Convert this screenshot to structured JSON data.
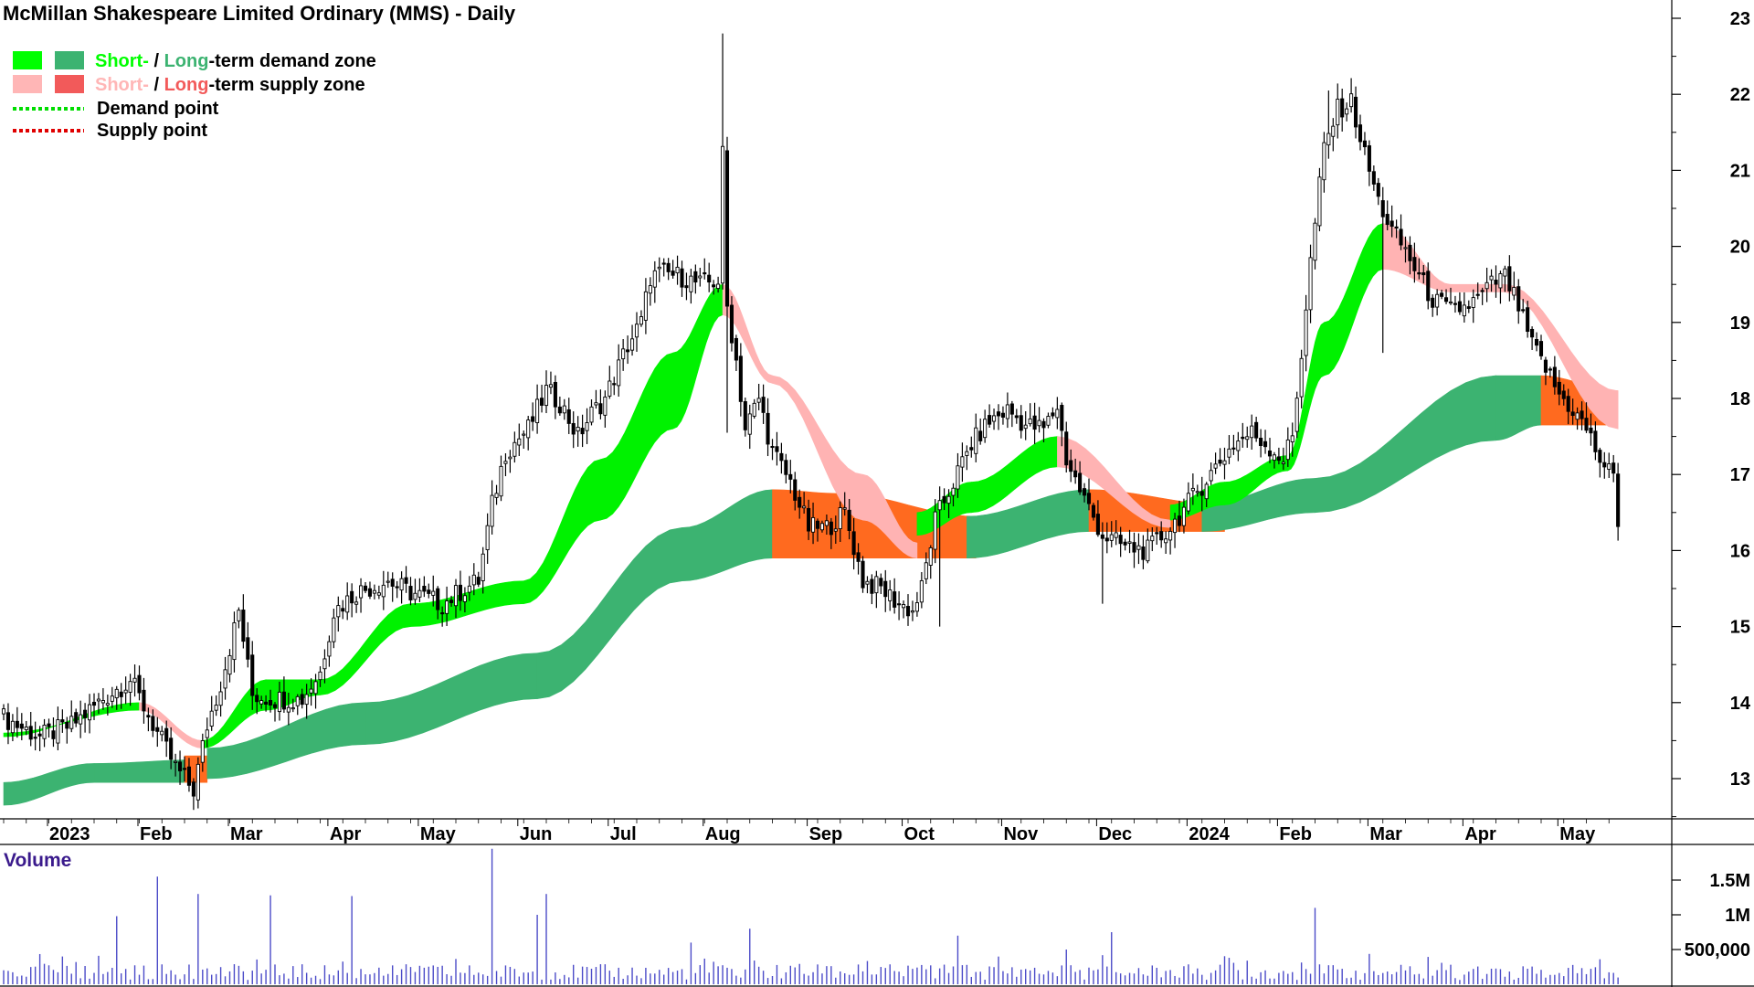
{
  "chart_data": {
    "type": "candlestick",
    "title": "McMillan Shakespeare Limited Ordinary (MMS) - Daily",
    "legend": {
      "placement": "top-left",
      "items": [
        {
          "prefix": "Short-",
          "sep": " / ",
          "mid": "Long",
          "suffix": "-term demand zone",
          "colors": [
            "#00ff00",
            "#3cb371"
          ],
          "prefix_color": "#00ff00",
          "mid_color": "#3cb371"
        },
        {
          "prefix": "Short-",
          "sep": " / ",
          "mid": "Long",
          "suffix": "-term supply zone",
          "colors": [
            "#ffb6b6",
            "#f25a5a"
          ],
          "prefix_color": "#ffb6b6",
          "mid_color": "#f25a5a"
        },
        {
          "label": "Demand point",
          "color": "#00dd00",
          "dashed": true
        },
        {
          "label": "Supply point",
          "color": "#e00000",
          "dashed": true
        }
      ]
    },
    "y_axis": {
      "ticks": [
        "13",
        "14",
        "15",
        "16",
        "17",
        "18",
        "19",
        "20",
        "21",
        "22",
        "23"
      ],
      "ylim": [
        12.5,
        23.2
      ],
      "side": "right"
    },
    "x_axis": {
      "ticks": [
        "2023",
        "Feb",
        "Mar",
        "Apr",
        "May",
        "Jun",
        "Jul",
        "Aug",
        "Sep",
        "Oct",
        "Nov",
        "Dec",
        "2024",
        "Feb",
        "Mar",
        "Apr",
        "May"
      ],
      "tick_index": [
        0,
        20,
        40,
        62,
        82,
        104,
        124,
        145,
        168,
        189,
        211,
        232,
        252,
        272,
        292,
        313,
        334
      ]
    },
    "price_path": [
      [
        0,
        13.8
      ],
      [
        8,
        13.55
      ],
      [
        15,
        13.7
      ],
      [
        22,
        14.05
      ],
      [
        28,
        14.3
      ],
      [
        31,
        13.95
      ],
      [
        34,
        13.6
      ],
      [
        38,
        13.15
      ],
      [
        42,
        12.85
      ],
      [
        45,
        13.7
      ],
      [
        48,
        14.25
      ],
      [
        52,
        15.2
      ],
      [
        55,
        14.1
      ],
      [
        60,
        14.05
      ],
      [
        66,
        14.05
      ],
      [
        70,
        14.4
      ],
      [
        73,
        15.2
      ],
      [
        78,
        15.45
      ],
      [
        85,
        15.6
      ],
      [
        90,
        15.45
      ],
      [
        97,
        15.3
      ],
      [
        102,
        15.5
      ],
      [
        105,
        15.6
      ],
      [
        108,
        16.6
      ],
      [
        111,
        17.3
      ],
      [
        116,
        17.6
      ],
      [
        120,
        18.1
      ],
      [
        123,
        17.95
      ],
      [
        127,
        17.5
      ],
      [
        130,
        17.8
      ],
      [
        133,
        18.0
      ],
      [
        138,
        18.7
      ],
      [
        141,
        19.0
      ],
      [
        143,
        19.6
      ],
      [
        146,
        19.65
      ],
      [
        150,
        19.6
      ],
      [
        154,
        19.5
      ],
      [
        158,
        19.55
      ],
      [
        159,
        21.2
      ],
      [
        160,
        19.2
      ],
      [
        162,
        18.5
      ],
      [
        164,
        17.6
      ],
      [
        167,
        18.0
      ],
      [
        170,
        17.3
      ],
      [
        174,
        16.9
      ],
      [
        178,
        16.3
      ],
      [
        182,
        16.3
      ],
      [
        186,
        16.5
      ],
      [
        190,
        15.6
      ],
      [
        194,
        15.5
      ],
      [
        198,
        15.3
      ],
      [
        201,
        15.2
      ],
      [
        203,
        15.5
      ],
      [
        206,
        16.4
      ],
      [
        210,
        16.9
      ],
      [
        214,
        17.4
      ],
      [
        218,
        17.7
      ],
      [
        222,
        17.85
      ],
      [
        226,
        17.65
      ],
      [
        230,
        17.6
      ],
      [
        233,
        17.9
      ],
      [
        235,
        17.2
      ],
      [
        238,
        16.8
      ],
      [
        243,
        16.2
      ],
      [
        248,
        16.05
      ],
      [
        253,
        16.0
      ],
      [
        258,
        16.3
      ],
      [
        263,
        16.7
      ],
      [
        268,
        17.1
      ],
      [
        272,
        17.4
      ],
      [
        276,
        17.55
      ],
      [
        280,
        17.35
      ],
      [
        283,
        17.2
      ],
      [
        285,
        17.5
      ],
      [
        287,
        18.6
      ],
      [
        289,
        19.8
      ],
      [
        292,
        21.3
      ],
      [
        295,
        21.8
      ],
      [
        298,
        21.9
      ],
      [
        301,
        21.2
      ],
      [
        304,
        20.6
      ],
      [
        307,
        20.2
      ],
      [
        310,
        19.95
      ],
      [
        313,
        19.6
      ],
      [
        316,
        19.3
      ],
      [
        320,
        19.15
      ],
      [
        323,
        19.2
      ],
      [
        326,
        19.3
      ],
      [
        329,
        19.5
      ],
      [
        332,
        19.6
      ],
      [
        335,
        19.2
      ],
      [
        338,
        18.7
      ],
      [
        341,
        18.4
      ],
      [
        344,
        18.05
      ],
      [
        347,
        17.85
      ],
      [
        350,
        17.6
      ],
      [
        353,
        17.2
      ],
      [
        356,
        16.95
      ],
      [
        357,
        16.4
      ]
    ],
    "spikes": [
      [
        159,
        22.8
      ],
      [
        160,
        17.55
      ],
      [
        243,
        15.3
      ],
      [
        293,
        22.05
      ],
      [
        305,
        18.6
      ],
      [
        207,
        15.0
      ],
      [
        42,
        12.8
      ]
    ],
    "short_zone": [
      {
        "x": [
          0,
          30
        ],
        "top": [
          13.55,
          14.0
        ],
        "bot": [
          13.6,
          13.9
        ],
        "kind": "demand"
      },
      {
        "x": [
          30,
          44
        ],
        "top": [
          14.0,
          13.5
        ],
        "bot": [
          13.9,
          13.4
        ],
        "kind": "supply"
      },
      {
        "x": [
          44,
          58
        ],
        "top": [
          13.5,
          14.3
        ],
        "bot": [
          13.4,
          13.9
        ],
        "kind": "demand"
      },
      {
        "x": [
          58,
          70
        ],
        "top": [
          14.3,
          14.3
        ],
        "bot": [
          13.9,
          14.1
        ],
        "kind": "demand"
      },
      {
        "x": [
          70,
          90
        ],
        "top": [
          14.3,
          15.3
        ],
        "bot": [
          14.1,
          15.0
        ],
        "kind": "demand"
      },
      {
        "x": [
          90,
          115
        ],
        "top": [
          15.3,
          15.6
        ],
        "bot": [
          15.0,
          15.3
        ],
        "kind": "demand"
      },
      {
        "x": [
          115,
          132
        ],
        "top": [
          15.6,
          17.2
        ],
        "bot": [
          15.3,
          16.4
        ],
        "kind": "demand"
      },
      {
        "x": [
          132,
          148
        ],
        "top": [
          17.2,
          18.6
        ],
        "bot": [
          16.4,
          17.6
        ],
        "kind": "demand"
      },
      {
        "x": [
          148,
          159
        ],
        "top": [
          18.6,
          19.5
        ],
        "bot": [
          17.6,
          19.1
        ],
        "kind": "demand"
      },
      {
        "x": [
          159,
          170
        ],
        "top": [
          19.5,
          18.3
        ],
        "bot": [
          19.1,
          18.2
        ],
        "kind": "supply"
      },
      {
        "x": [
          170,
          190
        ],
        "top": [
          18.3,
          17.0
        ],
        "bot": [
          18.2,
          16.4
        ],
        "kind": "supply"
      },
      {
        "x": [
          190,
          202
        ],
        "top": [
          17.0,
          16.1
        ],
        "bot": [
          16.4,
          15.9
        ],
        "kind": "supply"
      },
      {
        "x": [
          202,
          214
        ],
        "top": [
          16.5,
          16.9
        ],
        "bot": [
          16.2,
          16.5
        ],
        "kind": "demand"
      },
      {
        "x": [
          214,
          233
        ],
        "top": [
          16.9,
          17.5
        ],
        "bot": [
          16.5,
          17.1
        ],
        "kind": "demand"
      },
      {
        "x": [
          233,
          258
        ],
        "top": [
          17.5,
          16.4
        ],
        "bot": [
          17.1,
          16.3
        ],
        "kind": "supply"
      },
      {
        "x": [
          258,
          270
        ],
        "top": [
          16.6,
          16.9
        ],
        "bot": [
          16.4,
          16.6
        ],
        "kind": "demand"
      },
      {
        "x": [
          270,
          284
        ],
        "top": [
          16.9,
          17.25
        ],
        "bot": [
          16.6,
          17.05
        ],
        "kind": "demand"
      },
      {
        "x": [
          284,
          292
        ],
        "top": [
          17.25,
          19.0
        ],
        "bot": [
          17.05,
          18.3
        ],
        "kind": "demand"
      },
      {
        "x": [
          292,
          305
        ],
        "top": [
          19.0,
          20.3
        ],
        "bot": [
          18.3,
          19.7
        ],
        "kind": "demand"
      },
      {
        "x": [
          305,
          320
        ],
        "top": [
          20.3,
          19.5
        ],
        "bot": [
          19.7,
          19.4
        ],
        "kind": "supply"
      },
      {
        "x": [
          320,
          332
        ],
        "top": [
          19.5,
          19.5
        ],
        "bot": [
          19.4,
          19.4
        ],
        "kind": "supply"
      },
      {
        "x": [
          332,
          357
        ],
        "top": [
          19.5,
          18.1
        ],
        "bot": [
          19.4,
          17.6
        ],
        "kind": "supply"
      }
    ],
    "long_zone": [
      {
        "x": [
          0,
          20
        ],
        "top": [
          12.95,
          13.2
        ],
        "bot": [
          12.65,
          12.95
        ],
        "kind": "demand"
      },
      {
        "x": [
          20,
          44
        ],
        "top": [
          13.2,
          13.25
        ],
        "bot": [
          12.95,
          12.95
        ],
        "kind": "demand"
      },
      {
        "x": [
          40,
          45
        ],
        "top": [
          13.3,
          13.3
        ],
        "bot": [
          12.95,
          12.95
        ],
        "kind": "supply"
      },
      {
        "x": [
          45,
          80
        ],
        "top": [
          13.4,
          14.0
        ],
        "bot": [
          13.0,
          13.45
        ],
        "kind": "demand"
      },
      {
        "x": [
          80,
          118
        ],
        "top": [
          14.0,
          14.65
        ],
        "bot": [
          13.45,
          14.05
        ],
        "kind": "demand"
      },
      {
        "x": [
          118,
          150
        ],
        "top": [
          14.65,
          16.3
        ],
        "bot": [
          14.05,
          15.6
        ],
        "kind": "demand"
      },
      {
        "x": [
          150,
          170
        ],
        "top": [
          16.3,
          16.8
        ],
        "bot": [
          15.6,
          15.9
        ],
        "kind": "demand"
      },
      {
        "x": [
          170,
          185
        ],
        "top": [
          16.8,
          16.75
        ],
        "bot": [
          15.9,
          15.9
        ],
        "kind": "supply"
      },
      {
        "x": [
          185,
          215
        ],
        "top": [
          16.75,
          16.45
        ],
        "bot": [
          15.9,
          15.9
        ],
        "kind": "supply"
      },
      {
        "x": [
          213,
          240
        ],
        "top": [
          16.45,
          16.8
        ],
        "bot": [
          15.9,
          16.25
        ],
        "kind": "demand"
      },
      {
        "x": [
          240,
          270
        ],
        "top": [
          16.8,
          16.6
        ],
        "bot": [
          16.25,
          16.25
        ],
        "kind": "supply"
      },
      {
        "x": [
          265,
          290
        ],
        "top": [
          16.6,
          16.95
        ],
        "bot": [
          16.25,
          16.5
        ],
        "kind": "demand"
      },
      {
        "x": [
          290,
          330
        ],
        "top": [
          16.95,
          18.3
        ],
        "bot": [
          16.5,
          17.45
        ],
        "kind": "demand"
      },
      {
        "x": [
          330,
          340
        ],
        "top": [
          18.3,
          18.3
        ],
        "bot": [
          17.45,
          17.65
        ],
        "kind": "demand"
      },
      {
        "x": [
          340,
          357
        ],
        "top": [
          18.3,
          18.1
        ],
        "bot": [
          17.65,
          17.65
        ],
        "kind": "supply"
      }
    ]
  },
  "volume": {
    "title": "Volume",
    "ticks": [
      "1.5M",
      "1M",
      "500,000"
    ],
    "tick_values": [
      1500000,
      1000000,
      500000
    ],
    "ylim": [
      0,
      2000000
    ],
    "spikes": [
      [
        34,
        1550000
      ],
      [
        43,
        1300000
      ],
      [
        59,
        1280000
      ],
      [
        77,
        1270000
      ],
      [
        108,
        1950000
      ],
      [
        118,
        1000000
      ],
      [
        120,
        1300000
      ],
      [
        25,
        980000
      ],
      [
        165,
        800000
      ],
      [
        290,
        1100000
      ],
      [
        245,
        750000
      ],
      [
        211,
        700000
      ],
      [
        152,
        600000
      ],
      [
        13,
        400000
      ],
      [
        235,
        500000
      ]
    ]
  }
}
